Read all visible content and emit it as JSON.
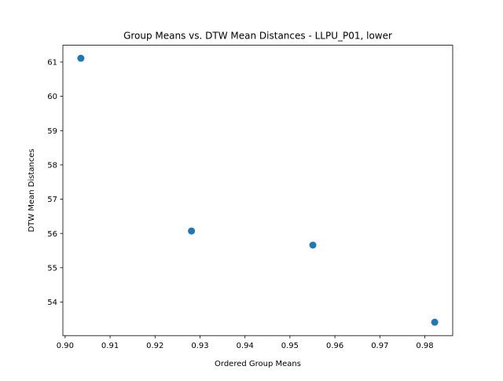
{
  "chart_data": {
    "type": "scatter",
    "title": "Group Means vs. DTW Mean Distances - LLPU_P01, lower",
    "xlabel": "Ordered Group Means",
    "ylabel": "DTW Mean Distances",
    "xlim": [
      0.8995,
      0.9862
    ],
    "ylim": [
      53.02,
      61.49
    ],
    "xticks": [
      0.9,
      0.91,
      0.92,
      0.93,
      0.94,
      0.95,
      0.96,
      0.97,
      0.98
    ],
    "xtick_labels": [
      "0.90",
      "0.91",
      "0.92",
      "0.93",
      "0.94",
      "0.95",
      "0.96",
      "0.97",
      "0.98"
    ],
    "yticks": [
      54,
      55,
      56,
      57,
      58,
      59,
      60,
      61
    ],
    "ytick_labels": [
      "54",
      "55",
      "56",
      "57",
      "58",
      "59",
      "60",
      "61"
    ],
    "grid": false,
    "marker_color": "#1f77b4",
    "points": [
      {
        "x": 0.9035,
        "y": 61.11
      },
      {
        "x": 0.9281,
        "y": 56.07
      },
      {
        "x": 0.9551,
        "y": 55.66
      },
      {
        "x": 0.9822,
        "y": 53.41
      }
    ]
  }
}
